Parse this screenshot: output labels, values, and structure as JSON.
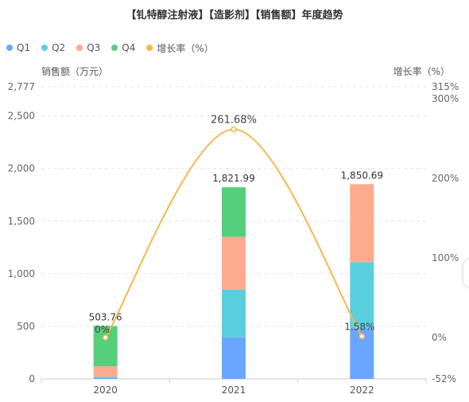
{
  "chart_data": {
    "type": "bar",
    "title": "【钆特醇注射液】【造影剂】【销售额】年度趋势",
    "categories": [
      "2020",
      "2021",
      "2022"
    ],
    "series": [
      {
        "name": "Q1",
        "color": "#6aa6ff",
        "values": [
          8,
          395,
          480
        ]
      },
      {
        "name": "Q2",
        "color": "#59cfde",
        "values": [
          12,
          455,
          630
        ]
      },
      {
        "name": "Q3",
        "color": "#fdab8c",
        "values": [
          100,
          500,
          741
        ]
      },
      {
        "name": "Q4",
        "color": "#54cf7c",
        "values": [
          384,
          472,
          0
        ]
      }
    ],
    "totals": [
      "503.76",
      "1,821.99",
      "1,850.69"
    ],
    "line_series": {
      "name": "增长率（%）",
      "color": "#f5b84c",
      "values": [
        0,
        261.68,
        1.58
      ],
      "labels": [
        "0%",
        "261.68%",
        "1.58%"
      ]
    },
    "ylabel": "销售额（万元）",
    "ylabel_right": "增长率（%）",
    "ylim": [
      0,
      2777
    ],
    "ylim_right": [
      -52,
      315
    ],
    "y_ticks": [
      0,
      500,
      1000,
      1500,
      2000,
      2500,
      2777
    ],
    "y_tick_labels": [
      "0",
      "500",
      "1,000",
      "1,500",
      "2,000",
      "2,500",
      "2,777"
    ],
    "y_right_ticks": [
      -52,
      0,
      100,
      200,
      300,
      315
    ],
    "y_right_tick_labels": [
      "-52%",
      "0%",
      "100%",
      "200%",
      "300%",
      "315%"
    ],
    "grid": true,
    "legend_position": "top-left"
  }
}
